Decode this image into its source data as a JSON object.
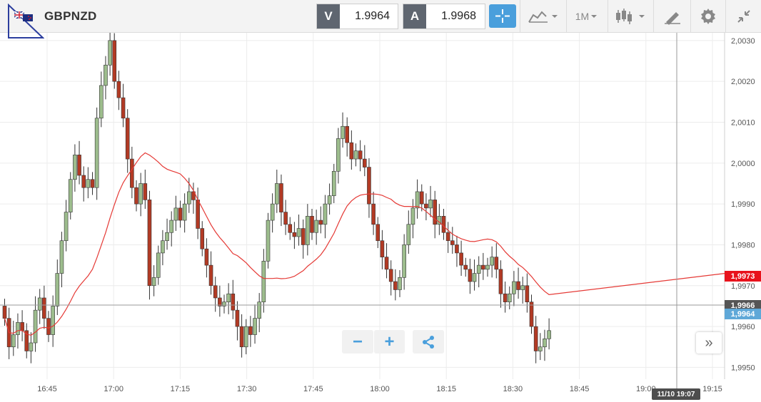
{
  "toolbar": {
    "symbol": "GBPNZD",
    "bid_label": "V",
    "bid_value": "1.9964",
    "ask_label": "A",
    "ask_value": "1.9968",
    "timeframe": "1M",
    "accent_color": "#4a9fdc"
  },
  "icons": [
    "crosshair-icon",
    "line-chart-type-icon",
    "candlestick-icon",
    "drawing-pencil-icon",
    "gear-icon",
    "collapse-icon",
    "zoom-out-icon",
    "zoom-in-icon",
    "share-icon",
    "scroll-to-latest-icon"
  ],
  "zoom": {
    "minus": "−",
    "plus": "+"
  },
  "nav": {
    "scroll_latest": "»"
  },
  "price_axis": {
    "labels": [
      "2,0030",
      "2,0020",
      "2,0010",
      "2,0000",
      "1,9990",
      "1,9980",
      "1,9970",
      "1,9960",
      "1,9950"
    ]
  },
  "time_axis": {
    "labels": [
      "16:45",
      "17:00",
      "17:15",
      "17:30",
      "17:45",
      "18:00",
      "18:15",
      "18:30",
      "18:45",
      "19:00",
      "19:15"
    ]
  },
  "tags": {
    "ma_value": "1,9973",
    "cross_price": "1,9966",
    "bid_price": "1,9964",
    "cross_time": "11/10 19:07"
  },
  "colors": {
    "up": "#9dbd8d",
    "down": "#b23a24",
    "ma_line": "#e53935",
    "ma_tag": "#e8121c",
    "bid_tag": "#5fa8d8",
    "cross_tag": "#555555"
  },
  "chart_data": {
    "type": "candlestick",
    "symbol": "GBPNZD",
    "interval": "1M",
    "y_range": [
      1.99485,
      2.00305
    ],
    "x_ticks": [
      "16:45",
      "17:00",
      "17:15",
      "17:30",
      "17:45",
      "18:00",
      "18:15",
      "18:30",
      "18:45",
      "19:00",
      "19:15"
    ],
    "ohlc_close": [
      1.9962,
      1.9955,
      1.9958,
      1.9961,
      1.9959,
      1.9954,
      1.9956,
      1.9964,
      1.9967,
      1.9962,
      1.9958,
      1.9965,
      1.9973,
      1.9981,
      1.9988,
      1.9996,
      2.0002,
      1.9997,
      1.9994,
      1.9996,
      1.9994,
      2.0011,
      2.0019,
      2.0024,
      2.003,
      2.002,
      2.0016,
      2.0011,
      2.0001,
      1.9994,
      1.999,
      1.9995,
      1.9991,
      1.997,
      1.9972,
      1.9978,
      1.9981,
      1.9983,
      1.9986,
      1.9989,
      1.9986,
      1.999,
      1.9993,
      1.9991,
      1.9984,
      1.9979,
      1.9975,
      1.997,
      1.9967,
      1.9965,
      1.9966,
      1.9968,
      1.9964,
      1.996,
      1.9955,
      1.996,
      1.9958,
      1.9962,
      1.9966,
      1.9976,
      1.9986,
      1.999,
      1.9995,
      1.9988,
      1.9985,
      1.9983,
      1.9982,
      1.9984,
      1.998,
      1.9987,
      1.9983,
      1.9986,
      1.9985,
      1.999,
      1.9992,
      1.9998,
      2.0006,
      2.0009,
      2.0005,
      2.0001,
      2.0003,
      2.0001,
      1.9999,
      1.999,
      1.9985,
      1.9981,
      1.9977,
      1.9974,
      1.9971,
      1.9969,
      1.9972,
      1.998,
      1.9985,
      1.9989,
      1.9993,
      1.999,
      1.9989,
      1.9991,
      1.9985,
      1.9987,
      1.9983,
      1.9981,
      1.998,
      1.9978,
      1.9975,
      1.9974,
      1.9971,
      1.9973,
      1.9975,
      1.9974,
      1.9975,
      1.9977,
      1.9974,
      1.9968,
      1.9966,
      1.9968,
      1.9971,
      1.9969,
      1.997,
      1.9966,
      1.996,
      1.9954,
      1.9955,
      1.9957,
      1.9959
    ],
    "moving_average_last": 1.9973,
    "crosshair": {
      "price": 1.9966,
      "time": "11/10 19:07"
    }
  }
}
